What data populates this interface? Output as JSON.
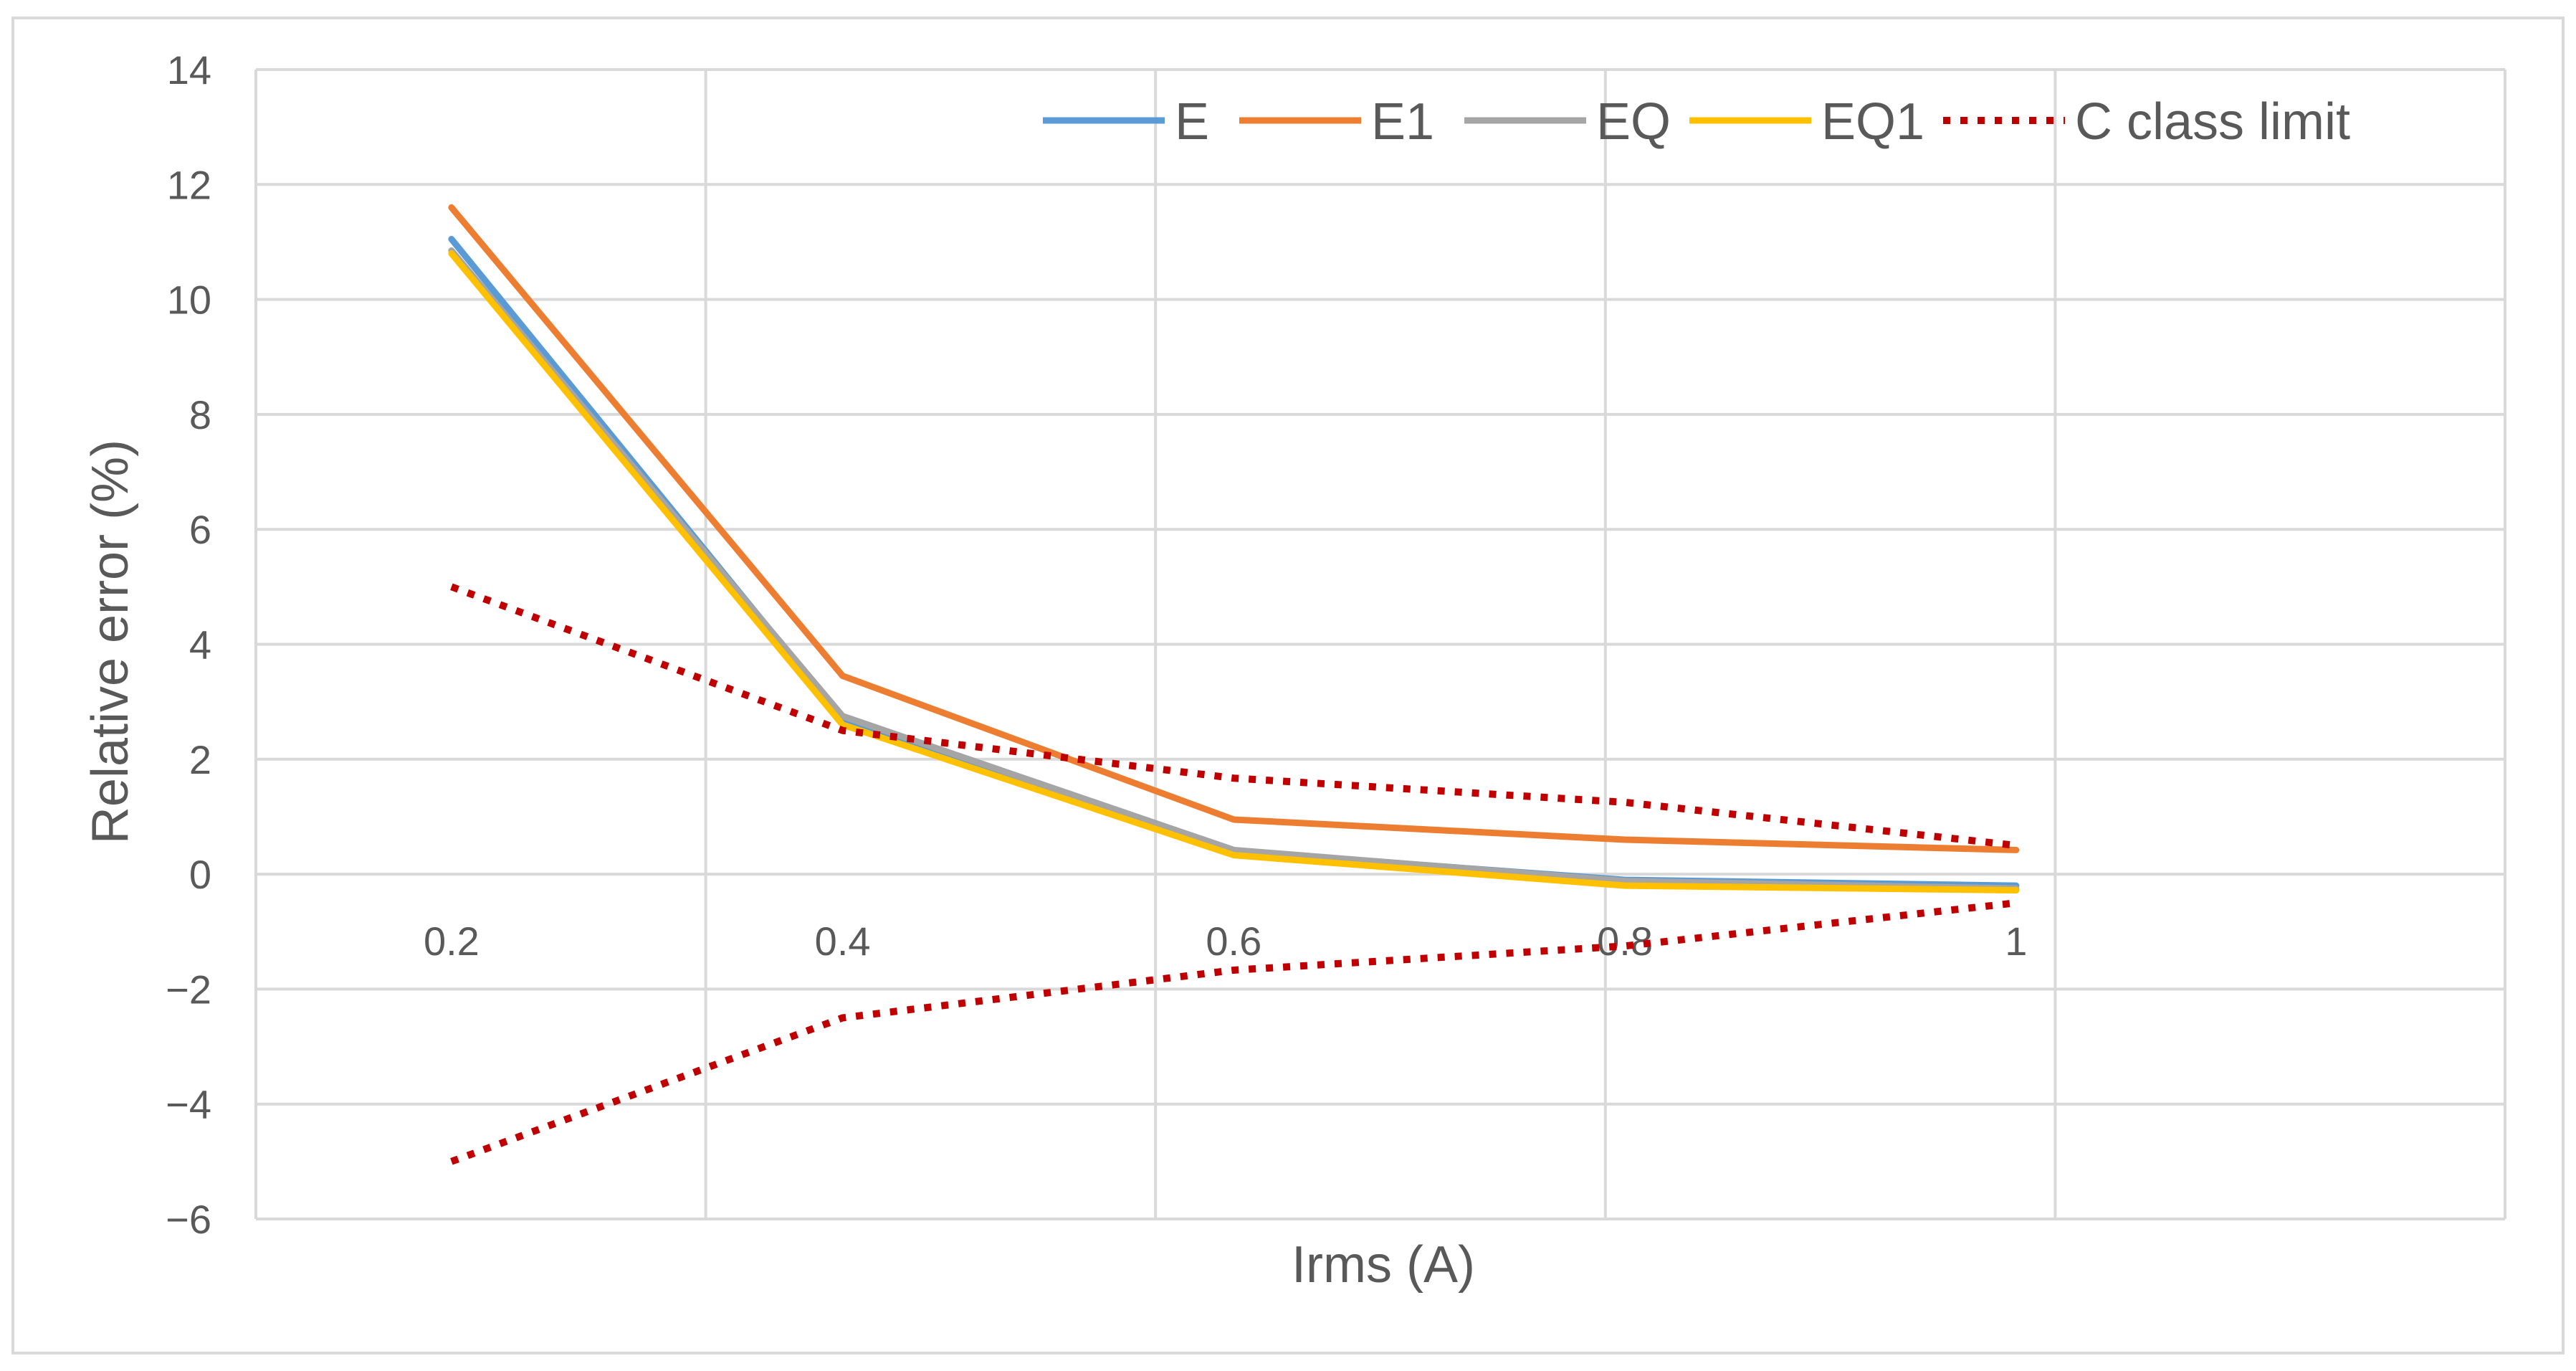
{
  "chart_data": {
    "type": "line",
    "title": "",
    "xlabel": "Irms (A)",
    "ylabel": "Relative error (%)",
    "categories": [
      "0.2",
      "0.4",
      "0.6",
      "0.8",
      "1"
    ],
    "ylim": [
      -6,
      14
    ],
    "yticks": [
      "14",
      "12",
      "10",
      "8",
      "6",
      "4",
      "2",
      "0",
      "−2",
      "−4",
      "−6"
    ],
    "grid": true,
    "legend_position": "top-right",
    "series": [
      {
        "name": "E",
        "color": "#5B9BD5",
        "style": "solid",
        "values": [
          11.05,
          2.7,
          0.4,
          -0.1,
          -0.2
        ]
      },
      {
        "name": "E1",
        "color": "#ED7D31",
        "style": "solid",
        "values": [
          11.6,
          3.45,
          0.95,
          0.6,
          0.42
        ]
      },
      {
        "name": "EQ",
        "color": "#A5A5A5",
        "style": "solid",
        "values": [
          10.85,
          2.75,
          0.42,
          -0.12,
          -0.25
        ]
      },
      {
        "name": "EQ1",
        "color": "#FFC000",
        "style": "solid",
        "values": [
          10.8,
          2.6,
          0.33,
          -0.2,
          -0.28
        ]
      },
      {
        "name": "C class limit",
        "color": "#C00000",
        "style": "dotted",
        "values": [
          5,
          2.5,
          1.67,
          1.25,
          0.5
        ]
      },
      {
        "name": "C class limit (lower)",
        "color": "#C00000",
        "style": "dotted",
        "values": [
          -5,
          -2.5,
          -1.67,
          -1.25,
          -0.5
        ],
        "legend": false
      }
    ]
  }
}
